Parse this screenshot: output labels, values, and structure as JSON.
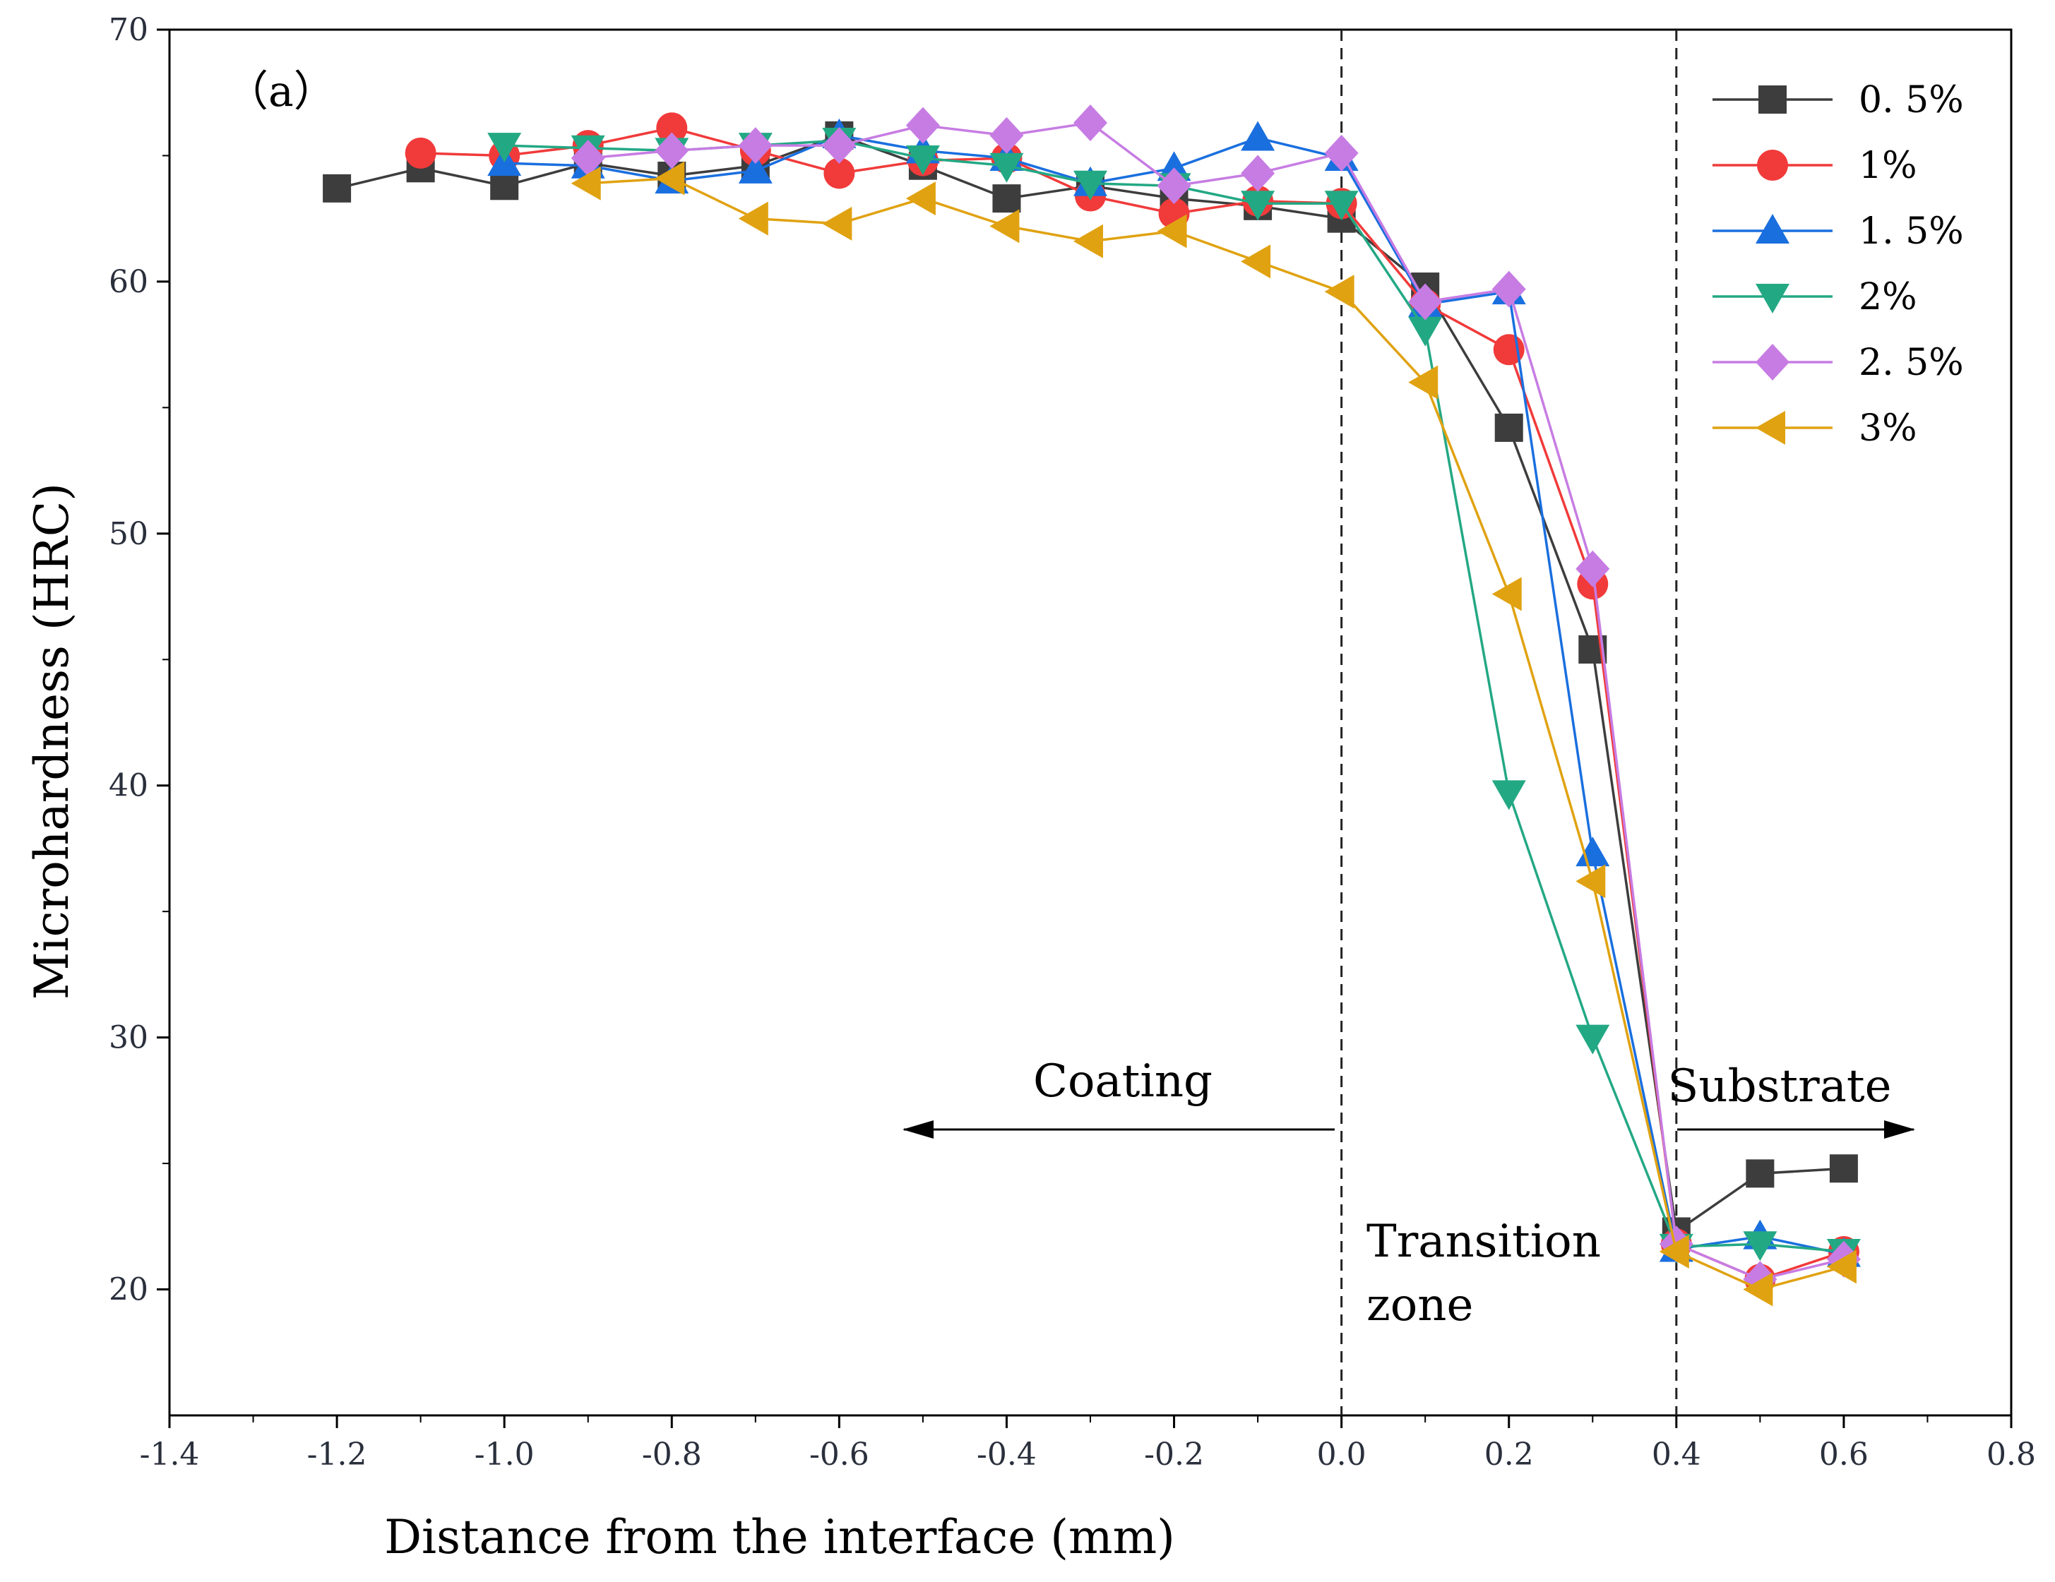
{
  "chart_data": {
    "type": "line",
    "panel_label": "（a）",
    "xlabel": "Distance from the interface (mm)",
    "ylabel": "Microhardness (HRC)",
    "xlim": [
      -1.4,
      0.8
    ],
    "ylim": [
      15,
      70
    ],
    "x_ticks": [
      -1.4,
      -1.2,
      -1.0,
      -0.8,
      -0.6,
      -0.4,
      -0.2,
      0.0,
      0.2,
      0.4,
      0.6,
      0.8
    ],
    "x_tick_labels": [
      "-1.4",
      "-1.2",
      "-1.0",
      "-0.8",
      "-0.6",
      "-0.4",
      "-0.2",
      "0.0",
      "0.2",
      "0.4",
      "0.6",
      "0.8"
    ],
    "y_ticks": [
      20,
      30,
      40,
      50,
      60,
      70
    ],
    "y_tick_labels": [
      "20",
      "30",
      "40",
      "50",
      "60",
      "70"
    ],
    "grid": false,
    "legend_position": "top-right",
    "vlines": [
      0.0,
      0.4
    ],
    "annotations": {
      "coating": "Coating",
      "substrate": "Substrate",
      "transition_line1": "Transition",
      "transition_line2": "zone"
    },
    "series": [
      {
        "name": "0. 5%",
        "color": "#3d3d3d",
        "marker": "square",
        "x": [
          -1.2,
          -1.1,
          -1.0,
          -0.9,
          -0.8,
          -0.7,
          -0.6,
          -0.5,
          -0.4,
          -0.3,
          -0.2,
          -0.1,
          0.0,
          0.1,
          0.2,
          0.3,
          0.4,
          0.5,
          0.6
        ],
        "y": [
          63.7,
          64.5,
          63.8,
          64.7,
          64.2,
          64.6,
          65.8,
          64.6,
          63.3,
          63.8,
          63.3,
          63.0,
          62.5,
          59.8,
          54.2,
          45.4,
          22.3,
          24.6,
          24.8
        ]
      },
      {
        "name": "1%",
        "color": "#f13a3a",
        "marker": "circle",
        "x": [
          -1.1,
          -1.0,
          -0.9,
          -0.8,
          -0.7,
          -0.6,
          -0.5,
          -0.4,
          -0.3,
          -0.2,
          -0.1,
          0.0,
          0.1,
          0.2,
          0.3,
          0.4,
          0.5,
          0.6
        ],
        "y": [
          65.1,
          65.0,
          65.4,
          66.1,
          65.2,
          64.3,
          64.8,
          64.9,
          63.4,
          62.7,
          63.2,
          63.1,
          59.1,
          57.3,
          48.0,
          21.8,
          20.4,
          21.5
        ]
      },
      {
        "name": "1. 5%",
        "color": "#1a6fdf",
        "marker": "triangle-up",
        "x": [
          -1.0,
          -0.9,
          -0.8,
          -0.7,
          -0.6,
          -0.5,
          -0.4,
          -0.3,
          -0.2,
          -0.1,
          0.0,
          0.1,
          0.2,
          0.3,
          0.4,
          0.5,
          0.6
        ],
        "y": [
          64.7,
          64.6,
          64.0,
          64.4,
          65.8,
          65.2,
          64.9,
          63.9,
          64.5,
          65.7,
          64.9,
          59.1,
          59.6,
          37.3,
          21.6,
          22.1,
          21.4
        ]
      },
      {
        "name": "2%",
        "color": "#23a884",
        "marker": "triangle-down",
        "x": [
          -1.0,
          -0.9,
          -0.8,
          -0.7,
          -0.6,
          -0.5,
          -0.4,
          -0.3,
          -0.2,
          -0.1,
          0.0,
          0.1,
          0.2,
          0.3,
          0.4,
          0.5,
          0.6
        ],
        "y": [
          65.4,
          65.3,
          65.2,
          65.4,
          65.6,
          64.9,
          64.6,
          63.9,
          63.8,
          63.1,
          63.1,
          58.1,
          39.7,
          30.0,
          21.7,
          21.8,
          21.5
        ]
      },
      {
        "name": "2. 5%",
        "color": "#c77ce3",
        "marker": "diamond",
        "x": [
          -0.9,
          -0.8,
          -0.7,
          -0.6,
          -0.5,
          -0.4,
          -0.3,
          -0.2,
          -0.1,
          0.0,
          0.1,
          0.2,
          0.3,
          0.4,
          0.5,
          0.6
        ],
        "y": [
          64.9,
          65.2,
          65.4,
          65.4,
          66.2,
          65.8,
          66.3,
          63.8,
          64.3,
          65.1,
          59.2,
          59.7,
          48.6,
          21.8,
          20.4,
          21.2
        ]
      },
      {
        "name": "3%",
        "color": "#e0a211",
        "marker": "triangle-left",
        "x": [
          -0.9,
          -0.8,
          -0.7,
          -0.6,
          -0.5,
          -0.4,
          -0.3,
          -0.2,
          -0.1,
          0.0,
          0.1,
          0.2,
          0.3,
          0.4,
          0.5,
          0.6
        ],
        "y": [
          63.9,
          64.1,
          62.5,
          62.3,
          63.3,
          62.2,
          61.6,
          62.0,
          60.8,
          59.6,
          56.0,
          47.6,
          36.2,
          21.5,
          20.0,
          20.9
        ]
      }
    ]
  }
}
